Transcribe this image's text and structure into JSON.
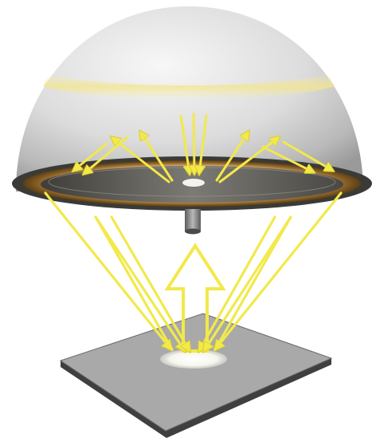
{
  "diagram": {
    "type": "illustration",
    "components": [
      "hemispherical-dome",
      "annular-collector-plate",
      "center-stem",
      "sample-plate",
      "illuminated-spot"
    ],
    "colors": {
      "dome_light": "#f4f4f4",
      "dome_mid": "#d6d6d6",
      "dome_dark": "#9a9a9a",
      "dome_band": "#f3e58a",
      "ray": "#f2e94a",
      "ray_edge": "#d9cf2e",
      "plate_outer": "#3b3a36",
      "plate_ring": "#a07a3c",
      "plate_inner": "#6e6c66",
      "sample_plate": "#a8a8a8",
      "sample_edge": "#4a4a4a",
      "spot": "#f6f6f0"
    }
  }
}
